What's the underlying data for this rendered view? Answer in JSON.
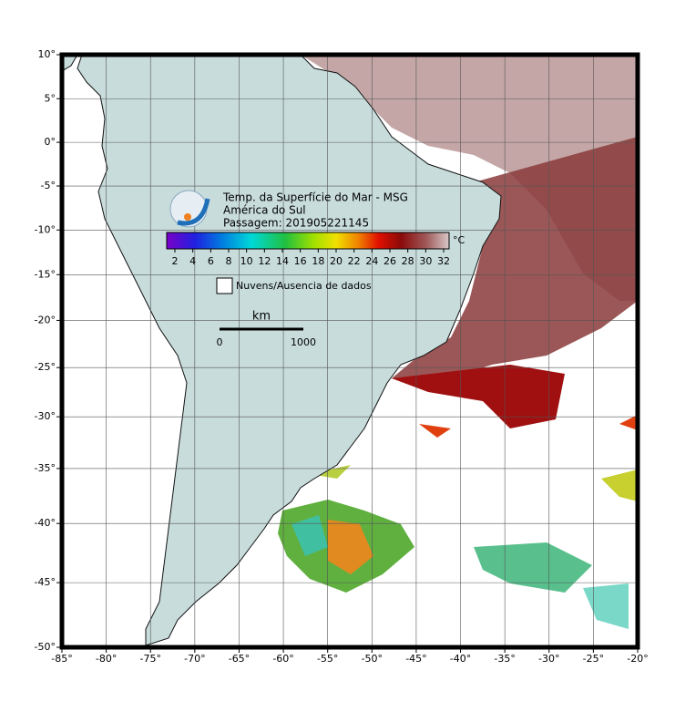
{
  "chart_data": {
    "type": "map",
    "projection": "mercator",
    "title_lines": [
      "Temp. da Superfície do Mar - MSG",
      "América do Sul",
      "Passagem: 201905221145"
    ],
    "xlim": [
      -85,
      -20
    ],
    "ylim": [
      -50,
      10
    ],
    "xticks": [
      {
        "value": -85,
        "label": "-85°"
      },
      {
        "value": -80,
        "label": "-80°"
      },
      {
        "value": -75,
        "label": "-75°"
      },
      {
        "value": -70,
        "label": "-70°"
      },
      {
        "value": -65,
        "label": "-65°"
      },
      {
        "value": -60,
        "label": "-60°"
      },
      {
        "value": -55,
        "label": "-55°"
      },
      {
        "value": -50,
        "label": "-50°"
      },
      {
        "value": -45,
        "label": "-45°"
      },
      {
        "value": -40,
        "label": "-40°"
      },
      {
        "value": -35,
        "label": "-35°"
      },
      {
        "value": -30,
        "label": "-30°"
      },
      {
        "value": -25,
        "label": "-25°"
      },
      {
        "value": -20,
        "label": "-20°"
      }
    ],
    "yticks": [
      {
        "value": 10,
        "label": "10°"
      },
      {
        "value": 5,
        "label": "5°"
      },
      {
        "value": 0,
        "label": "0°"
      },
      {
        "value": -5,
        "label": "-5°"
      },
      {
        "value": -10,
        "label": "-10°"
      },
      {
        "value": -15,
        "label": "-15°"
      },
      {
        "value": -20,
        "label": "-20°"
      },
      {
        "value": -25,
        "label": "-25°"
      },
      {
        "value": -30,
        "label": "-30°"
      },
      {
        "value": -35,
        "label": "-35°"
      },
      {
        "value": -40,
        "label": "-40°"
      },
      {
        "value": -45,
        "label": "-45°"
      },
      {
        "value": -50,
        "label": "-50°"
      }
    ],
    "grid": true,
    "colorbar": {
      "ticks": [
        2,
        4,
        6,
        8,
        10,
        12,
        14,
        16,
        18,
        20,
        22,
        24,
        26,
        28,
        30,
        32
      ],
      "unit": "°C"
    },
    "legend": "Nuvens/Ausencia de dados",
    "scale": {
      "unit": "km",
      "labels": [
        0,
        1000
      ]
    }
  }
}
